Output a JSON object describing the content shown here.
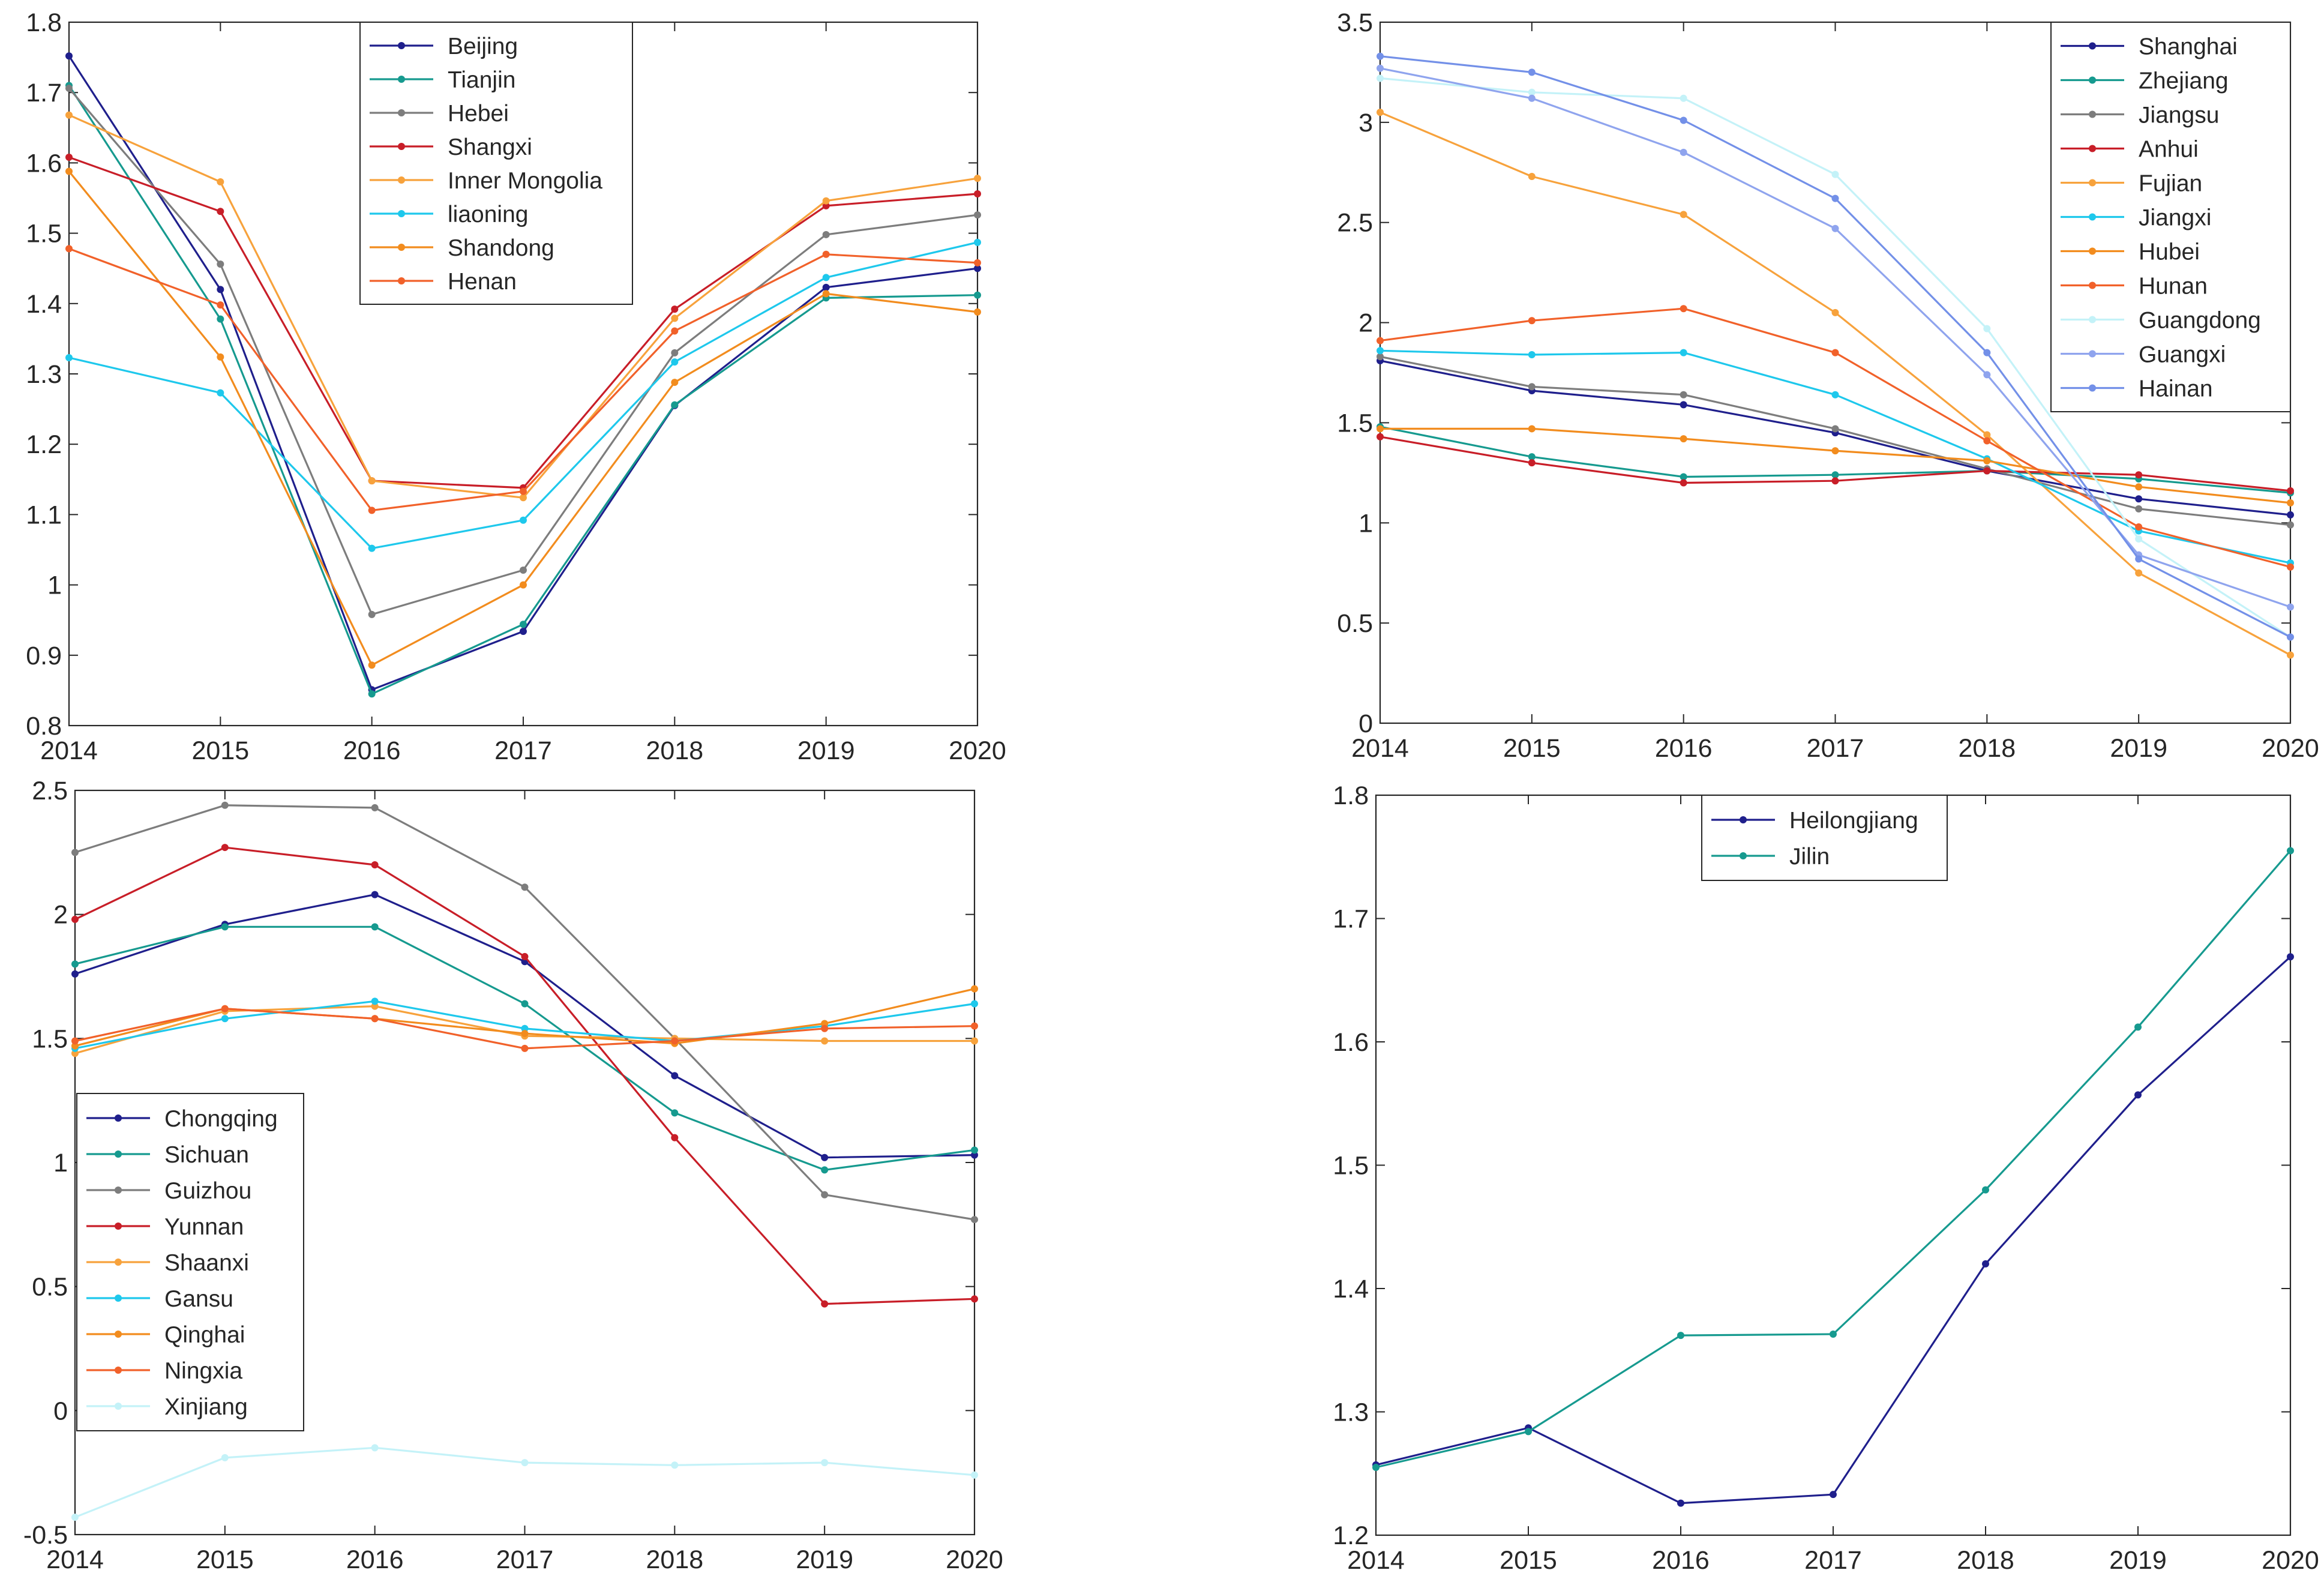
{
  "chart_data": [
    {
      "type": "line",
      "x": [
        2014,
        2015,
        2016,
        2017,
        2018,
        2019,
        2020
      ],
      "ylim": [
        0.8,
        1.8
      ],
      "yticks": [
        0.8,
        0.9,
        1.0,
        1.1,
        1.2,
        1.3,
        1.4,
        1.5,
        1.6,
        1.7,
        1.8
      ],
      "ytick_labels": [
        "0.8",
        "0.9",
        "1",
        "1.1",
        "1.2",
        "1.3",
        "1.4",
        "1.5",
        "1.6",
        "1.7",
        "1.8"
      ],
      "xtick_labels": [
        "2014",
        "2015",
        "2016",
        "2017",
        "2018",
        "2019",
        "2020"
      ],
      "legend_position": "top-center",
      "series": [
        {
          "name": "Beijing",
          "color": "#1f1f8c",
          "values": [
            1.752,
            1.42,
            0.851,
            0.934,
            1.255,
            1.423,
            1.45
          ]
        },
        {
          "name": "Tianjin",
          "color": "#169a8f",
          "values": [
            1.71,
            1.378,
            0.845,
            0.944,
            1.256,
            1.408,
            1.412
          ]
        },
        {
          "name": "Hebei",
          "color": "#7d7d7d",
          "values": [
            1.706,
            1.456,
            0.958,
            1.021,
            1.33,
            1.498,
            1.526
          ]
        },
        {
          "name": "Shangxi",
          "color": "#c81e28",
          "values": [
            1.608,
            1.531,
            1.148,
            1.138,
            1.392,
            1.539,
            1.556
          ]
        },
        {
          "name": "Inner Mongolia",
          "color": "#f7a23c",
          "values": [
            1.668,
            1.573,
            1.148,
            1.124,
            1.379,
            1.546,
            1.578
          ]
        },
        {
          "name": "liaoning",
          "color": "#1ec8ec",
          "values": [
            1.323,
            1.273,
            1.052,
            1.092,
            1.317,
            1.437,
            1.487
          ]
        },
        {
          "name": "Shandong",
          "color": "#f28c1e",
          "values": [
            1.588,
            1.324,
            0.886,
            1.0,
            1.288,
            1.414,
            1.388
          ]
        },
        {
          "name": "Henan",
          "color": "#f1612a",
          "values": [
            1.478,
            1.398,
            1.106,
            1.133,
            1.361,
            1.47,
            1.458
          ]
        }
      ]
    },
    {
      "type": "line",
      "x": [
        2014,
        2015,
        2016,
        2017,
        2018,
        2019,
        2020
      ],
      "ylim": [
        0,
        3.5
      ],
      "yticks": [
        0,
        0.5,
        1.0,
        1.5,
        2.0,
        2.5,
        3.0,
        3.5
      ],
      "ytick_labels": [
        "0",
        "0.5",
        "1",
        "1.5",
        "2",
        "2.5",
        "3",
        "3.5"
      ],
      "xtick_labels": [
        "2014",
        "2015",
        "2016",
        "2017",
        "2018",
        "2019",
        "2020"
      ],
      "legend_position": "top-right",
      "series": [
        {
          "name": "Shanghai",
          "color": "#1f1f8c",
          "values": [
            1.81,
            1.66,
            1.59,
            1.45,
            1.26,
            1.12,
            1.04
          ]
        },
        {
          "name": "Zhejiang",
          "color": "#169a8f",
          "values": [
            1.48,
            1.33,
            1.23,
            1.24,
            1.26,
            1.22,
            1.15
          ]
        },
        {
          "name": "Jiangsu",
          "color": "#7d7d7d",
          "values": [
            1.83,
            1.68,
            1.64,
            1.47,
            1.27,
            1.07,
            0.99
          ]
        },
        {
          "name": "Anhui",
          "color": "#c81e28",
          "values": [
            1.43,
            1.3,
            1.2,
            1.21,
            1.26,
            1.24,
            1.16
          ]
        },
        {
          "name": "Fujian",
          "color": "#f7a23c",
          "values": [
            3.05,
            2.73,
            2.54,
            2.05,
            1.44,
            0.75,
            0.34
          ]
        },
        {
          "name": "Jiangxi",
          "color": "#1ec8ec",
          "values": [
            1.86,
            1.84,
            1.85,
            1.64,
            1.32,
            0.96,
            0.8
          ]
        },
        {
          "name": "Hubei",
          "color": "#f28c1e",
          "values": [
            1.47,
            1.47,
            1.42,
            1.36,
            1.31,
            1.18,
            1.1
          ]
        },
        {
          "name": "Hunan",
          "color": "#f1612a",
          "values": [
            1.91,
            2.01,
            2.07,
            1.85,
            1.41,
            0.98,
            0.78
          ]
        },
        {
          "name": "Guangdong",
          "color": "#c4f2f8",
          "values": [
            3.22,
            3.15,
            3.12,
            2.74,
            1.97,
            0.92,
            0.43
          ]
        },
        {
          "name": "Guangxi",
          "color": "#8fa4ee",
          "values": [
            3.27,
            3.12,
            2.85,
            2.47,
            1.74,
            0.84,
            0.58
          ]
        },
        {
          "name": "Hainan",
          "color": "#7390e8",
          "values": [
            3.33,
            3.25,
            3.01,
            2.62,
            1.85,
            0.82,
            0.43
          ]
        }
      ]
    },
    {
      "type": "line",
      "x": [
        2014,
        2015,
        2016,
        2017,
        2018,
        2019,
        2020
      ],
      "ylim": [
        -0.5,
        2.5
      ],
      "yticks": [
        -0.5,
        0,
        0.5,
        1.0,
        1.5,
        2.0,
        2.5
      ],
      "ytick_labels": [
        "-0.5",
        "0",
        "0.5",
        "1",
        "1.5",
        "2",
        "2.5"
      ],
      "xtick_labels": [
        "2014",
        "2015",
        "2016",
        "2017",
        "2018",
        "2019",
        "2020"
      ],
      "legend_position": "bottom-left",
      "series": [
        {
          "name": "Chongqing",
          "color": "#1f1f8c",
          "values": [
            1.76,
            1.96,
            2.08,
            1.81,
            1.35,
            1.02,
            1.03
          ]
        },
        {
          "name": "Sichuan",
          "color": "#169a8f",
          "values": [
            1.8,
            1.95,
            1.95,
            1.64,
            1.2,
            0.97,
            1.05
          ]
        },
        {
          "name": "Guizhou",
          "color": "#7d7d7d",
          "values": [
            2.25,
            2.44,
            2.43,
            2.11,
            1.5,
            0.87,
            0.77
          ]
        },
        {
          "name": "Yunnan",
          "color": "#c81e28",
          "values": [
            1.98,
            2.27,
            2.2,
            1.83,
            1.1,
            0.43,
            0.45
          ]
        },
        {
          "name": "Shaanxi",
          "color": "#f7a23c",
          "values": [
            1.44,
            1.61,
            1.63,
            1.51,
            1.5,
            1.49,
            1.49
          ]
        },
        {
          "name": "Gansu",
          "color": "#1ec8ec",
          "values": [
            1.46,
            1.58,
            1.65,
            1.54,
            1.49,
            1.55,
            1.64
          ]
        },
        {
          "name": "Qinghai",
          "color": "#f28c1e",
          "values": [
            1.47,
            1.62,
            1.58,
            1.52,
            1.48,
            1.56,
            1.7
          ]
        },
        {
          "name": "Ningxia",
          "color": "#f1612a",
          "values": [
            1.49,
            1.62,
            1.58,
            1.46,
            1.49,
            1.54,
            1.55
          ]
        },
        {
          "name": "Xinjiang",
          "color": "#c4f2f8",
          "values": [
            -0.43,
            -0.19,
            -0.15,
            -0.21,
            -0.22,
            -0.21,
            -0.26
          ]
        }
      ]
    },
    {
      "type": "line",
      "x": [
        2014,
        2015,
        2016,
        2017,
        2018,
        2019,
        2020
      ],
      "ylim": [
        1.2,
        1.8
      ],
      "yticks": [
        1.2,
        1.3,
        1.4,
        1.5,
        1.6,
        1.7,
        1.8
      ],
      "ytick_labels": [
        "1.2",
        "1.3",
        "1.4",
        "1.5",
        "1.6",
        "1.7",
        "1.8"
      ],
      "xtick_labels": [
        "2014",
        "2015",
        "2016",
        "2017",
        "2018",
        "2019",
        "2020"
      ],
      "legend_position": "top-center",
      "series": [
        {
          "name": "Heilongjiang",
          "color": "#1f1f8c",
          "values": [
            1.257,
            1.287,
            1.226,
            1.233,
            1.42,
            1.557,
            1.669
          ]
        },
        {
          "name": "Jilin",
          "color": "#169a8f",
          "values": [
            1.255,
            1.284,
            1.362,
            1.363,
            1.48,
            1.612,
            1.755
          ]
        }
      ]
    }
  ]
}
